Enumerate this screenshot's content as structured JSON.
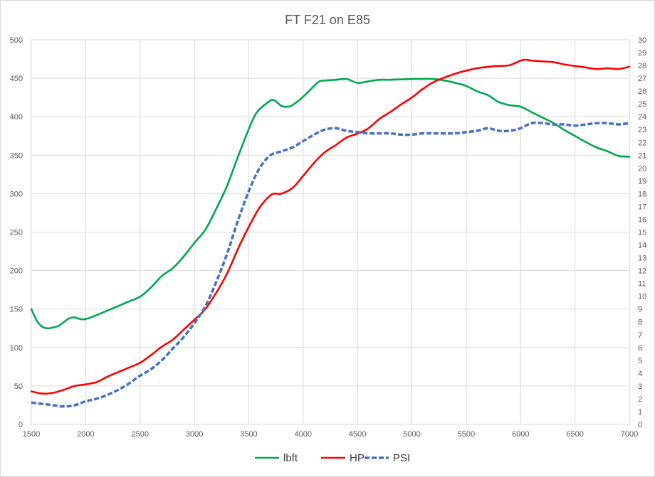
{
  "chart_data": {
    "type": "line",
    "title": "FT F21 on E85",
    "xlabel": "",
    "ylabel": "",
    "y2label": "",
    "xlim": [
      1500,
      7000
    ],
    "ylim": [
      0,
      500
    ],
    "y2lim": [
      0,
      30
    ],
    "x_ticks": [
      "1500",
      "2000",
      "2500",
      "3000",
      "3500",
      "4000",
      "4500",
      "5000",
      "5500",
      "6000",
      "6500",
      "7000"
    ],
    "y_ticks": [
      "0",
      "50",
      "100",
      "150",
      "200",
      "250",
      "300",
      "350",
      "400",
      "450",
      "500"
    ],
    "y2_ticks": [
      "0",
      "1",
      "2",
      "3",
      "4",
      "5",
      "6",
      "7",
      "8",
      "9",
      "10",
      "11",
      "12",
      "13",
      "14",
      "15",
      "16",
      "17",
      "18",
      "19",
      "20",
      "21",
      "22",
      "23",
      "24",
      "25",
      "26",
      "27",
      "28",
      "29",
      "30"
    ],
    "grid": true,
    "legend_position": "bottom",
    "series": [
      {
        "name": "lbft",
        "color": "#00a84f",
        "style": "solid",
        "axis": "left",
        "points": [
          [
            1500,
            150
          ],
          [
            1550,
            135
          ],
          [
            1600,
            127
          ],
          [
            1650,
            125
          ],
          [
            1700,
            126
          ],
          [
            1750,
            128
          ],
          [
            1800,
            133
          ],
          [
            1850,
            138
          ],
          [
            1900,
            139
          ],
          [
            1950,
            137
          ],
          [
            2000,
            137
          ],
          [
            2100,
            142
          ],
          [
            2200,
            148
          ],
          [
            2300,
            154
          ],
          [
            2400,
            160
          ],
          [
            2500,
            166
          ],
          [
            2600,
            178
          ],
          [
            2700,
            193
          ],
          [
            2800,
            203
          ],
          [
            2900,
            218
          ],
          [
            3000,
            236
          ],
          [
            3100,
            253
          ],
          [
            3200,
            280
          ],
          [
            3300,
            310
          ],
          [
            3400,
            348
          ],
          [
            3500,
            384
          ],
          [
            3550,
            400
          ],
          [
            3600,
            410
          ],
          [
            3700,
            421
          ],
          [
            3720,
            422
          ],
          [
            3750,
            420
          ],
          [
            3800,
            414
          ],
          [
            3850,
            413
          ],
          [
            3900,
            415
          ],
          [
            4000,
            426
          ],
          [
            4100,
            440
          ],
          [
            4150,
            446
          ],
          [
            4200,
            447
          ],
          [
            4300,
            448
          ],
          [
            4400,
            449
          ],
          [
            4500,
            444
          ],
          [
            4600,
            446
          ],
          [
            4700,
            448
          ],
          [
            4800,
            448
          ],
          [
            5000,
            449
          ],
          [
            5200,
            449
          ],
          [
            5300,
            447
          ],
          [
            5400,
            444
          ],
          [
            5500,
            440
          ],
          [
            5600,
            433
          ],
          [
            5700,
            428
          ],
          [
            5800,
            419
          ],
          [
            5900,
            415
          ],
          [
            6000,
            413
          ],
          [
            6100,
            406
          ],
          [
            6200,
            399
          ],
          [
            6300,
            392
          ],
          [
            6400,
            383
          ],
          [
            6500,
            375
          ],
          [
            6600,
            367
          ],
          [
            6700,
            360
          ],
          [
            6800,
            355
          ],
          [
            6900,
            349
          ],
          [
            7000,
            348
          ]
        ]
      },
      {
        "name": "HP",
        "color": "#ff0000",
        "style": "solid",
        "axis": "left",
        "points": [
          [
            1500,
            43
          ],
          [
            1600,
            40
          ],
          [
            1700,
            41
          ],
          [
            1800,
            45
          ],
          [
            1900,
            50
          ],
          [
            2000,
            52
          ],
          [
            2100,
            55
          ],
          [
            2200,
            62
          ],
          [
            2300,
            68
          ],
          [
            2400,
            74
          ],
          [
            2500,
            80
          ],
          [
            2600,
            90
          ],
          [
            2700,
            101
          ],
          [
            2800,
            110
          ],
          [
            2900,
            123
          ],
          [
            3000,
            136
          ],
          [
            3100,
            150
          ],
          [
            3200,
            171
          ],
          [
            3300,
            196
          ],
          [
            3400,
            228
          ],
          [
            3500,
            257
          ],
          [
            3600,
            282
          ],
          [
            3700,
            298
          ],
          [
            3750,
            300
          ],
          [
            3800,
            300
          ],
          [
            3900,
            307
          ],
          [
            4000,
            323
          ],
          [
            4100,
            340
          ],
          [
            4200,
            354
          ],
          [
            4300,
            363
          ],
          [
            4400,
            373
          ],
          [
            4500,
            378
          ],
          [
            4600,
            385
          ],
          [
            4700,
            397
          ],
          [
            4800,
            406
          ],
          [
            4900,
            416
          ],
          [
            5000,
            425
          ],
          [
            5100,
            436
          ],
          [
            5200,
            445
          ],
          [
            5300,
            451
          ],
          [
            5400,
            456
          ],
          [
            5500,
            460
          ],
          [
            5600,
            463
          ],
          [
            5700,
            465
          ],
          [
            5800,
            466
          ],
          [
            5900,
            467
          ],
          [
            6000,
            473
          ],
          [
            6050,
            474
          ],
          [
            6100,
            473
          ],
          [
            6200,
            472
          ],
          [
            6300,
            471
          ],
          [
            6400,
            468
          ],
          [
            6500,
            466
          ],
          [
            6600,
            464
          ],
          [
            6700,
            462
          ],
          [
            6800,
            463
          ],
          [
            6900,
            462
          ],
          [
            7000,
            465
          ]
        ]
      },
      {
        "name": "PSI",
        "color": "#4472c4",
        "style": "dashed",
        "axis": "right",
        "points": [
          [
            1500,
            1.7
          ],
          [
            1600,
            1.6
          ],
          [
            1700,
            1.5
          ],
          [
            1800,
            1.4
          ],
          [
            1900,
            1.5
          ],
          [
            2000,
            1.8
          ],
          [
            2100,
            2.0
          ],
          [
            2200,
            2.3
          ],
          [
            2300,
            2.7
          ],
          [
            2400,
            3.2
          ],
          [
            2500,
            3.8
          ],
          [
            2600,
            4.3
          ],
          [
            2700,
            5.0
          ],
          [
            2800,
            5.9
          ],
          [
            2900,
            6.8
          ],
          [
            3000,
            7.9
          ],
          [
            3100,
            9.2
          ],
          [
            3200,
            11.1
          ],
          [
            3300,
            13.3
          ],
          [
            3400,
            15.9
          ],
          [
            3500,
            18.2
          ],
          [
            3600,
            20.0
          ],
          [
            3700,
            21.0
          ],
          [
            3800,
            21.3
          ],
          [
            3900,
            21.6
          ],
          [
            4000,
            22.1
          ],
          [
            4100,
            22.6
          ],
          [
            4200,
            23.0
          ],
          [
            4300,
            23.1
          ],
          [
            4400,
            22.9
          ],
          [
            4500,
            22.8
          ],
          [
            4600,
            22.7
          ],
          [
            4700,
            22.7
          ],
          [
            4800,
            22.7
          ],
          [
            4900,
            22.6
          ],
          [
            5000,
            22.6
          ],
          [
            5100,
            22.7
          ],
          [
            5200,
            22.7
          ],
          [
            5300,
            22.7
          ],
          [
            5400,
            22.7
          ],
          [
            5500,
            22.8
          ],
          [
            5600,
            22.9
          ],
          [
            5700,
            23.1
          ],
          [
            5800,
            22.9
          ],
          [
            5900,
            22.9
          ],
          [
            6000,
            23.1
          ],
          [
            6100,
            23.5
          ],
          [
            6200,
            23.5
          ],
          [
            6300,
            23.4
          ],
          [
            6400,
            23.4
          ],
          [
            6500,
            23.3
          ],
          [
            6600,
            23.4
          ],
          [
            6700,
            23.5
          ],
          [
            6800,
            23.5
          ],
          [
            6900,
            23.4
          ],
          [
            7000,
            23.5
          ]
        ]
      }
    ]
  }
}
